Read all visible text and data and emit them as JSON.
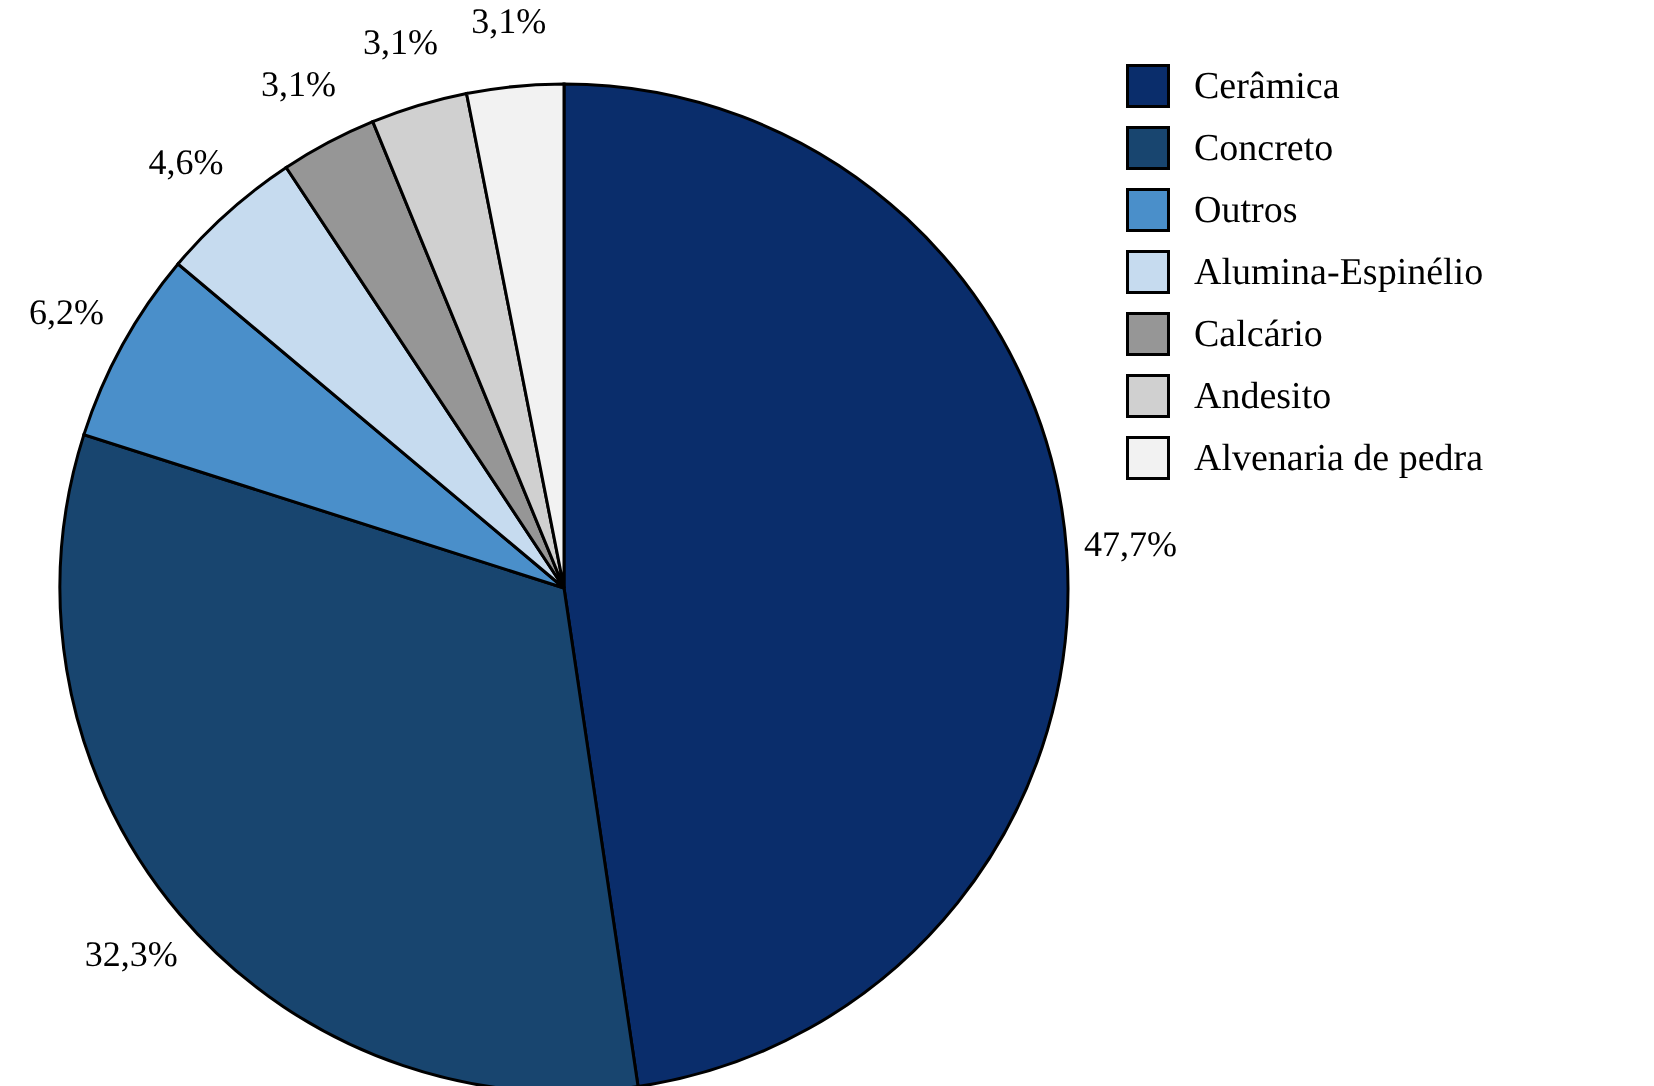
{
  "chart_data": {
    "type": "pie",
    "categories": [
      "Cerâmica",
      "Concreto",
      "Outros",
      "Alumina-Espinélio",
      "Calcário",
      "Andesito",
      "Alvenaria de pedra"
    ],
    "values": [
      47.7,
      32.3,
      6.2,
      4.6,
      3.1,
      3.1,
      3.1
    ],
    "colors": [
      "#0a2d6b",
      "#18456f",
      "#4a8fca",
      "#c6dbef",
      "#969696",
      "#d0d0d0",
      "#f2f2f2"
    ],
    "value_labels": [
      "47,7%",
      "32,3%",
      "6,2%",
      "4,6%",
      "3,1%",
      "3,1%",
      "3,1%"
    ],
    "legend": "top right"
  }
}
